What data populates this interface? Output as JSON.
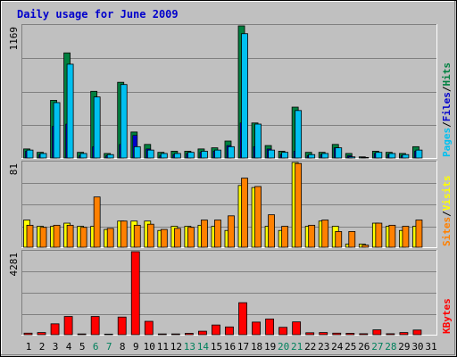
{
  "title": "Daily usage for June 2009",
  "colors": {
    "background": "#C0C0C0",
    "plot_background": "#C0C0C0",
    "title": "#0000CC",
    "hits": "#008040",
    "files": "#0000CC",
    "pages": "#00C0F0",
    "visits": "#FF8000",
    "sites": "#FFFF00",
    "kbytes": "#FF0000",
    "weekend_label": "#00805C",
    "axis_text": "#000000",
    "legend_sep": "#000000"
  },
  "chart_data": [
    {
      "type": "bar",
      "panel": "hits-files-pages",
      "ymax_label": "1169",
      "legend": [
        {
          "label": "Pages",
          "color": "#00C0F0"
        },
        {
          "label": "/",
          "color": "#000000"
        },
        {
          "label": "Files",
          "color": "#0000CC"
        },
        {
          "label": "/",
          "color": "#000000"
        },
        {
          "label": "Hits",
          "color": "#008040"
        }
      ],
      "ylim": [
        0,
        1169
      ],
      "series": [
        {
          "name": "Hits",
          "values": [
            80,
            50,
            510,
            930,
            50,
            590,
            40,
            670,
            230,
            120,
            50,
            60,
            60,
            80,
            90,
            150,
            1169,
            310,
            110,
            60,
            450,
            50,
            50,
            120,
            40,
            10,
            60,
            50,
            40,
            100
          ]
        },
        {
          "name": "Files",
          "values": [
            60,
            30,
            280,
            300,
            20,
            100,
            20,
            120,
            200,
            80,
            20,
            30,
            40,
            50,
            60,
            110,
            310,
            100,
            80,
            30,
            60,
            20,
            30,
            90,
            20,
            5,
            40,
            30,
            20,
            60
          ]
        },
        {
          "name": "Pages",
          "values": [
            70,
            40,
            490,
            830,
            40,
            540,
            30,
            650,
            100,
            70,
            40,
            40,
            50,
            60,
            70,
            100,
            1100,
            300,
            70,
            50,
            420,
            30,
            40,
            90,
            10,
            5,
            50,
            40,
            30,
            70
          ]
        }
      ]
    },
    {
      "type": "bar",
      "panel": "visits-sites",
      "ymax_label": "81",
      "legend": [
        {
          "label": "Sites",
          "color": "#FF8000"
        },
        {
          "label": "/",
          "color": "#000000"
        },
        {
          "label": "Visits",
          "color": "#FFFF00"
        }
      ],
      "ylim": [
        0,
        81
      ],
      "series": [
        {
          "name": "Visits",
          "values": [
            26,
            20,
            20,
            23,
            20,
            20,
            17,
            25,
            25,
            25,
            16,
            20,
            20,
            21,
            20,
            16,
            59,
            57,
            20,
            16,
            81,
            20,
            25,
            20,
            3,
            3,
            23,
            20,
            16,
            20
          ]
        },
        {
          "name": "Sites",
          "values": [
            21,
            19,
            21,
            21,
            19,
            48,
            18,
            25,
            21,
            22,
            17,
            18,
            19,
            26,
            26,
            30,
            66,
            58,
            31,
            20,
            80,
            21,
            26,
            15,
            15,
            2,
            23,
            21,
            20,
            26
          ]
        }
      ]
    },
    {
      "type": "bar",
      "panel": "kbytes",
      "ymax_label": "4281",
      "legend": [
        {
          "label": "KBytes",
          "color": "#FF0000"
        }
      ],
      "ylim": [
        0,
        4281
      ],
      "series": [
        {
          "name": "KBytes",
          "values": [
            80,
            110,
            560,
            940,
            40,
            940,
            30,
            910,
            4281,
            690,
            40,
            40,
            70,
            180,
            500,
            400,
            1650,
            650,
            810,
            380,
            660,
            100,
            110,
            80,
            70,
            50,
            250,
            50,
            110,
            240
          ]
        }
      ]
    },
    {
      "type": "axis",
      "x_labels": [
        "1",
        "2",
        "3",
        "4",
        "5",
        "6",
        "7",
        "8",
        "9",
        "10",
        "11",
        "12",
        "13",
        "14",
        "15",
        "16",
        "17",
        "18",
        "19",
        "20",
        "21",
        "22",
        "23",
        "24",
        "25",
        "26",
        "27",
        "28",
        "29",
        "30",
        "31"
      ],
      "weekend_days": [
        6,
        7,
        13,
        14,
        20,
        21,
        27,
        28
      ]
    }
  ]
}
